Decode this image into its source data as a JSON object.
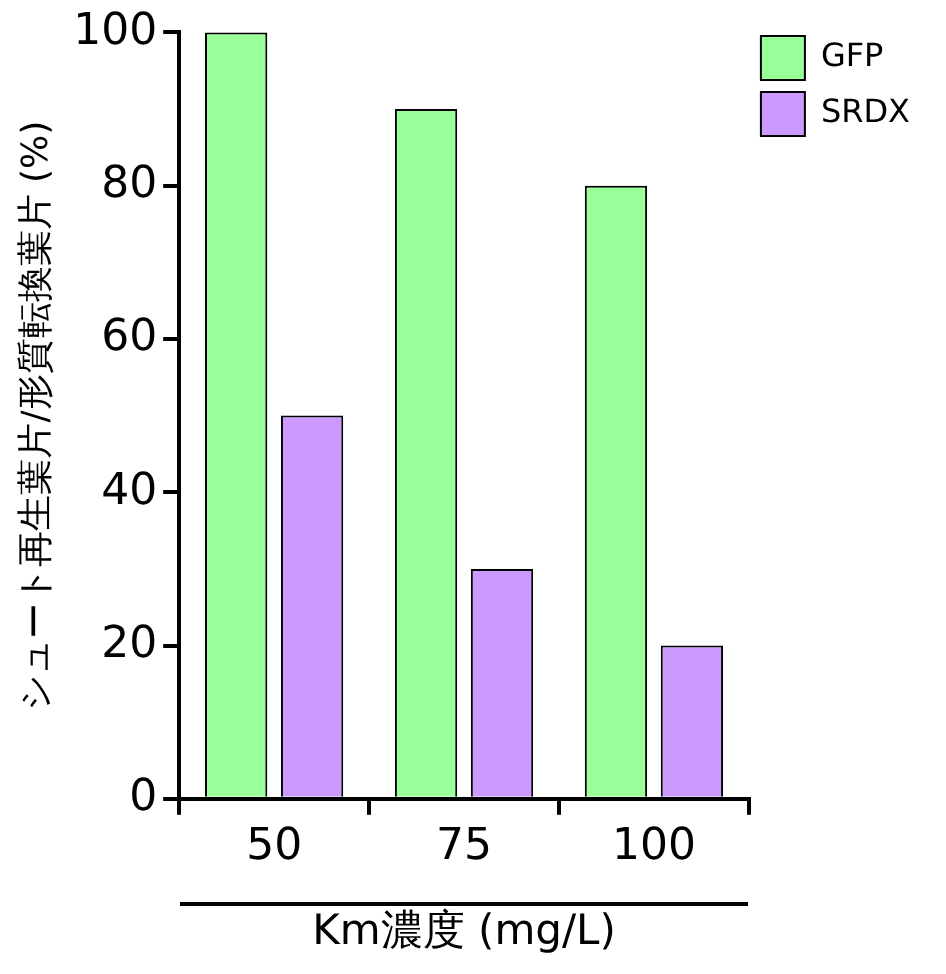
{
  "chart_data": {
    "type": "bar",
    "xlabel": "Km濃度 (mg/L)",
    "ylabel": "シュート再生葉片/形質転換葉片 (%)",
    "categories": [
      "50",
      "75",
      "100"
    ],
    "series": [
      {
        "name": "GFP",
        "color": "#99ff99",
        "values": [
          100,
          90,
          80
        ]
      },
      {
        "name": "SRDX",
        "color": "#cc99ff",
        "values": [
          50,
          30,
          20
        ]
      }
    ],
    "ylim": [
      0,
      100
    ],
    "yticks": [
      0,
      20,
      40,
      60,
      80,
      100
    ],
    "grid": false,
    "legend": "right"
  }
}
